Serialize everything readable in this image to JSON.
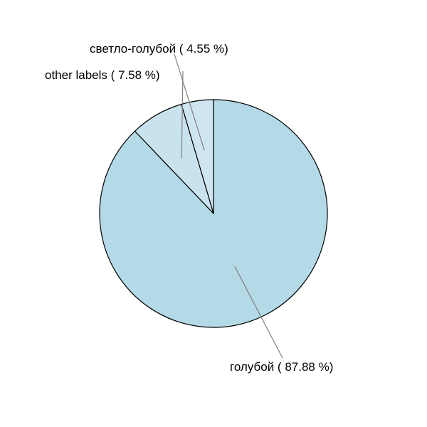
{
  "chart_data": {
    "type": "pie",
    "title": "",
    "slices": [
      {
        "label": "голубой",
        "percent": 87.88,
        "color": "#b4dae8",
        "text": "голубой ( 87.88 %)"
      },
      {
        "label": "other labels",
        "percent": 7.58,
        "color": "#c9e3ee",
        "text": "other labels ( 7.58 %)"
      },
      {
        "label": "светло-голубой",
        "percent": 4.55,
        "color": "#cfe5f0",
        "text": "светло-голубой ( 4.55 %)"
      }
    ],
    "start_angle": "12 o'clock",
    "direction": "clockwise"
  }
}
